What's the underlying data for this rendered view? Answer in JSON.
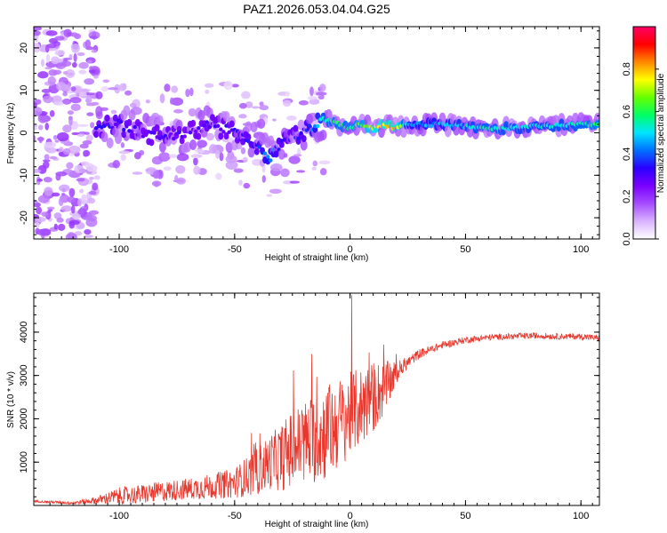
{
  "title": "PAZ1.2026.053.04.04.G25",
  "chart_data": [
    {
      "type": "heatmap",
      "name": "spectrogram",
      "xlabel": "Height of straight line (km)",
      "ylabel": "Frequency (Hz)",
      "xlim": [
        -137,
        108
      ],
      "ylim": [
        -25,
        25
      ],
      "xticks": [
        -100,
        -50,
        0,
        50,
        100
      ],
      "yticks": [
        -20,
        -10,
        0,
        10,
        20
      ],
      "colorbar": {
        "label": "Normalized spectral amplitude",
        "range": [
          0.0,
          1.0
        ],
        "ticks": [
          0.0,
          0.2,
          0.4,
          0.6,
          0.8
        ],
        "tick_labels": [
          "0.0",
          "0.2",
          "0.4",
          "0.6",
          "0.8"
        ],
        "colormap": [
          "#ffffff",
          "#d9b3ff",
          "#a64dff",
          "#7a00ff",
          "#2a00ff",
          "#0070ff",
          "#00e5ff",
          "#00ff66",
          "#66ff00",
          "#ffff00",
          "#ff8800",
          "#ff0000",
          "#ff0066"
        ]
      },
      "ridge": {
        "x": [
          -110,
          -100,
          -90,
          -80,
          -70,
          -60,
          -50,
          -40,
          -35,
          -30,
          -25,
          -20,
          -15,
          -10,
          -5,
          0,
          5,
          10,
          15,
          20,
          25,
          40,
          60,
          80,
          100,
          108
        ],
        "freq": [
          1,
          2,
          0,
          -1,
          0,
          2,
          0,
          -3,
          -6,
          -3,
          -1,
          0,
          2,
          3,
          2,
          1,
          2,
          1,
          2,
          1,
          2,
          2,
          1,
          1.5,
          2,
          2
        ],
        "amplitude": [
          0.3,
          0.32,
          0.28,
          0.3,
          0.27,
          0.3,
          0.3,
          0.33,
          0.45,
          0.33,
          0.3,
          0.35,
          0.45,
          0.55,
          0.58,
          0.58,
          0.62,
          0.72,
          0.78,
          0.8,
          0.45,
          0.45,
          0.55,
          0.5,
          0.55,
          0.6
        ]
      },
      "scatter_region": {
        "x": [
          -137,
          -110
        ],
        "freq": [
          -25,
          25
        ],
        "amplitude_max": 0.15
      }
    },
    {
      "type": "line",
      "name": "snr",
      "xlabel": "Height of straight line (km)",
      "ylabel": "SNR (10 * v/v)",
      "xlim": [
        -137,
        108
      ],
      "ylim": [
        0,
        4900
      ],
      "xticks": [
        -100,
        -50,
        0,
        50,
        100
      ],
      "yticks": [
        1000,
        2000,
        3000,
        4000
      ],
      "color": "#e8382e",
      "x": [
        -137,
        -130,
        -120,
        -110,
        -100,
        -90,
        -80,
        -70,
        -60,
        -50,
        -40,
        -35,
        -30,
        -25,
        -20,
        -15,
        -10,
        -5,
        0,
        5,
        10,
        15,
        20,
        25,
        30,
        40,
        50,
        60,
        70,
        80,
        90,
        100,
        108
      ],
      "y": [
        100,
        80,
        60,
        120,
        220,
        260,
        330,
        380,
        440,
        520,
        800,
        1000,
        1100,
        1300,
        1450,
        1550,
        1700,
        1900,
        2100,
        2300,
        2500,
        2700,
        3050,
        3300,
        3500,
        3700,
        3820,
        3880,
        3900,
        3920,
        3900,
        3900,
        3860
      ],
      "noise": [
        30,
        40,
        50,
        120,
        280,
        320,
        340,
        360,
        420,
        500,
        800,
        900,
        1100,
        1300,
        1400,
        1500,
        1600,
        1500,
        1400,
        1300,
        1200,
        900,
        400,
        200,
        160,
        120,
        110,
        100,
        100,
        100,
        100,
        100,
        100
      ]
    }
  ]
}
